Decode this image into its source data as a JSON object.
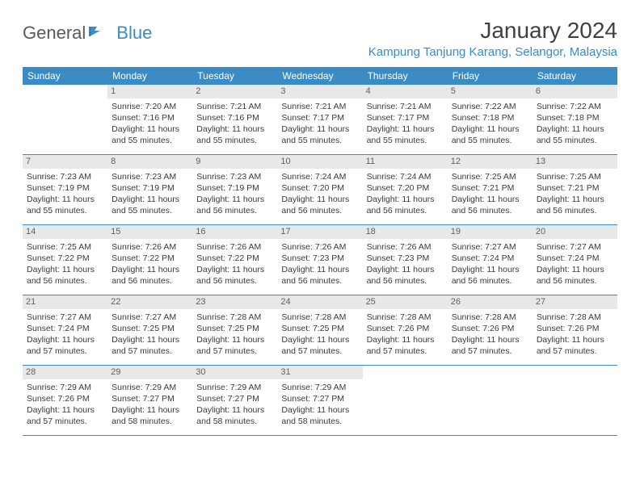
{
  "brand": {
    "name_gray": "General",
    "name_blue": "Blue"
  },
  "title": "January 2024",
  "location": "Kampung Tanjung Karang, Selangor, Malaysia",
  "colors": {
    "accent": "#3b8bc4",
    "header_bg": "#3b8bc4",
    "daynum_bg": "#e8e8e8",
    "text": "#3a3a3a",
    "background": "#ffffff"
  },
  "day_headers": [
    "Sunday",
    "Monday",
    "Tuesday",
    "Wednesday",
    "Thursday",
    "Friday",
    "Saturday"
  ],
  "weeks": [
    [
      {
        "empty": true
      },
      {
        "num": "1",
        "sunrise": "Sunrise: 7:20 AM",
        "sunset": "Sunset: 7:16 PM",
        "day1": "Daylight: 11 hours",
        "day2": "and 55 minutes."
      },
      {
        "num": "2",
        "sunrise": "Sunrise: 7:21 AM",
        "sunset": "Sunset: 7:16 PM",
        "day1": "Daylight: 11 hours",
        "day2": "and 55 minutes."
      },
      {
        "num": "3",
        "sunrise": "Sunrise: 7:21 AM",
        "sunset": "Sunset: 7:17 PM",
        "day1": "Daylight: 11 hours",
        "day2": "and 55 minutes."
      },
      {
        "num": "4",
        "sunrise": "Sunrise: 7:21 AM",
        "sunset": "Sunset: 7:17 PM",
        "day1": "Daylight: 11 hours",
        "day2": "and 55 minutes."
      },
      {
        "num": "5",
        "sunrise": "Sunrise: 7:22 AM",
        "sunset": "Sunset: 7:18 PM",
        "day1": "Daylight: 11 hours",
        "day2": "and 55 minutes."
      },
      {
        "num": "6",
        "sunrise": "Sunrise: 7:22 AM",
        "sunset": "Sunset: 7:18 PM",
        "day1": "Daylight: 11 hours",
        "day2": "and 55 minutes."
      }
    ],
    [
      {
        "num": "7",
        "sunrise": "Sunrise: 7:23 AM",
        "sunset": "Sunset: 7:19 PM",
        "day1": "Daylight: 11 hours",
        "day2": "and 55 minutes."
      },
      {
        "num": "8",
        "sunrise": "Sunrise: 7:23 AM",
        "sunset": "Sunset: 7:19 PM",
        "day1": "Daylight: 11 hours",
        "day2": "and 55 minutes."
      },
      {
        "num": "9",
        "sunrise": "Sunrise: 7:23 AM",
        "sunset": "Sunset: 7:19 PM",
        "day1": "Daylight: 11 hours",
        "day2": "and 56 minutes."
      },
      {
        "num": "10",
        "sunrise": "Sunrise: 7:24 AM",
        "sunset": "Sunset: 7:20 PM",
        "day1": "Daylight: 11 hours",
        "day2": "and 56 minutes."
      },
      {
        "num": "11",
        "sunrise": "Sunrise: 7:24 AM",
        "sunset": "Sunset: 7:20 PM",
        "day1": "Daylight: 11 hours",
        "day2": "and 56 minutes."
      },
      {
        "num": "12",
        "sunrise": "Sunrise: 7:25 AM",
        "sunset": "Sunset: 7:21 PM",
        "day1": "Daylight: 11 hours",
        "day2": "and 56 minutes."
      },
      {
        "num": "13",
        "sunrise": "Sunrise: 7:25 AM",
        "sunset": "Sunset: 7:21 PM",
        "day1": "Daylight: 11 hours",
        "day2": "and 56 minutes."
      }
    ],
    [
      {
        "num": "14",
        "sunrise": "Sunrise: 7:25 AM",
        "sunset": "Sunset: 7:22 PM",
        "day1": "Daylight: 11 hours",
        "day2": "and 56 minutes."
      },
      {
        "num": "15",
        "sunrise": "Sunrise: 7:26 AM",
        "sunset": "Sunset: 7:22 PM",
        "day1": "Daylight: 11 hours",
        "day2": "and 56 minutes."
      },
      {
        "num": "16",
        "sunrise": "Sunrise: 7:26 AM",
        "sunset": "Sunset: 7:22 PM",
        "day1": "Daylight: 11 hours",
        "day2": "and 56 minutes."
      },
      {
        "num": "17",
        "sunrise": "Sunrise: 7:26 AM",
        "sunset": "Sunset: 7:23 PM",
        "day1": "Daylight: 11 hours",
        "day2": "and 56 minutes."
      },
      {
        "num": "18",
        "sunrise": "Sunrise: 7:26 AM",
        "sunset": "Sunset: 7:23 PM",
        "day1": "Daylight: 11 hours",
        "day2": "and 56 minutes."
      },
      {
        "num": "19",
        "sunrise": "Sunrise: 7:27 AM",
        "sunset": "Sunset: 7:24 PM",
        "day1": "Daylight: 11 hours",
        "day2": "and 56 minutes."
      },
      {
        "num": "20",
        "sunrise": "Sunrise: 7:27 AM",
        "sunset": "Sunset: 7:24 PM",
        "day1": "Daylight: 11 hours",
        "day2": "and 56 minutes."
      }
    ],
    [
      {
        "num": "21",
        "sunrise": "Sunrise: 7:27 AM",
        "sunset": "Sunset: 7:24 PM",
        "day1": "Daylight: 11 hours",
        "day2": "and 57 minutes."
      },
      {
        "num": "22",
        "sunrise": "Sunrise: 7:27 AM",
        "sunset": "Sunset: 7:25 PM",
        "day1": "Daylight: 11 hours",
        "day2": "and 57 minutes."
      },
      {
        "num": "23",
        "sunrise": "Sunrise: 7:28 AM",
        "sunset": "Sunset: 7:25 PM",
        "day1": "Daylight: 11 hours",
        "day2": "and 57 minutes."
      },
      {
        "num": "24",
        "sunrise": "Sunrise: 7:28 AM",
        "sunset": "Sunset: 7:25 PM",
        "day1": "Daylight: 11 hours",
        "day2": "and 57 minutes."
      },
      {
        "num": "25",
        "sunrise": "Sunrise: 7:28 AM",
        "sunset": "Sunset: 7:26 PM",
        "day1": "Daylight: 11 hours",
        "day2": "and 57 minutes."
      },
      {
        "num": "26",
        "sunrise": "Sunrise: 7:28 AM",
        "sunset": "Sunset: 7:26 PM",
        "day1": "Daylight: 11 hours",
        "day2": "and 57 minutes."
      },
      {
        "num": "27",
        "sunrise": "Sunrise: 7:28 AM",
        "sunset": "Sunset: 7:26 PM",
        "day1": "Daylight: 11 hours",
        "day2": "and 57 minutes."
      }
    ],
    [
      {
        "num": "28",
        "sunrise": "Sunrise: 7:29 AM",
        "sunset": "Sunset: 7:26 PM",
        "day1": "Daylight: 11 hours",
        "day2": "and 57 minutes."
      },
      {
        "num": "29",
        "sunrise": "Sunrise: 7:29 AM",
        "sunset": "Sunset: 7:27 PM",
        "day1": "Daylight: 11 hours",
        "day2": "and 58 minutes."
      },
      {
        "num": "30",
        "sunrise": "Sunrise: 7:29 AM",
        "sunset": "Sunset: 7:27 PM",
        "day1": "Daylight: 11 hours",
        "day2": "and 58 minutes."
      },
      {
        "num": "31",
        "sunrise": "Sunrise: 7:29 AM",
        "sunset": "Sunset: 7:27 PM",
        "day1": "Daylight: 11 hours",
        "day2": "and 58 minutes."
      },
      {
        "empty": true
      },
      {
        "empty": true
      },
      {
        "empty": true
      }
    ]
  ]
}
